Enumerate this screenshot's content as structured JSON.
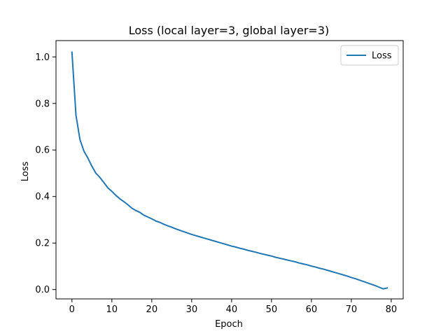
{
  "chart_data": {
    "type": "line",
    "title": "Loss (local layer=3, global layer=3)",
    "xlabel": "Epoch",
    "ylabel": "Loss",
    "xlim": [
      -4,
      83
    ],
    "ylim": [
      -0.04,
      1.07
    ],
    "xticks": [
      0,
      10,
      20,
      30,
      40,
      50,
      60,
      70,
      80
    ],
    "yticks": [
      0.0,
      0.2,
      0.4,
      0.6,
      0.8,
      1.0
    ],
    "xtick_labels": [
      "0",
      "10",
      "20",
      "30",
      "40",
      "50",
      "60",
      "70",
      "80"
    ],
    "ytick_labels": [
      "0.0",
      "0.2",
      "0.4",
      "0.6",
      "0.8",
      "1.0"
    ],
    "grid": false,
    "legend_position": "top-right",
    "series": [
      {
        "name": "Loss",
        "color": "#1f77b4",
        "x": [
          0,
          1,
          2,
          3,
          4,
          5,
          6,
          7,
          8,
          9,
          10,
          11,
          12,
          13,
          14,
          15,
          16,
          17,
          18,
          19,
          20,
          21,
          22,
          23,
          24,
          25,
          26,
          27,
          28,
          29,
          30,
          31,
          32,
          33,
          34,
          35,
          36,
          37,
          38,
          39,
          40,
          41,
          42,
          43,
          44,
          45,
          46,
          47,
          48,
          49,
          50,
          51,
          52,
          53,
          54,
          55,
          56,
          57,
          58,
          59,
          60,
          61,
          62,
          63,
          64,
          65,
          66,
          67,
          68,
          69,
          70,
          71,
          72,
          73,
          74,
          75,
          76,
          77,
          78,
          79
        ],
        "y": [
          1.02,
          0.75,
          0.645,
          0.595,
          0.565,
          0.53,
          0.5,
          0.482,
          0.46,
          0.437,
          0.422,
          0.405,
          0.39,
          0.378,
          0.365,
          0.35,
          0.34,
          0.332,
          0.32,
          0.312,
          0.304,
          0.295,
          0.289,
          0.281,
          0.274,
          0.268,
          0.261,
          0.255,
          0.249,
          0.243,
          0.237,
          0.232,
          0.227,
          0.222,
          0.217,
          0.212,
          0.207,
          0.202,
          0.197,
          0.192,
          0.187,
          0.183,
          0.178,
          0.174,
          0.169,
          0.165,
          0.161,
          0.156,
          0.152,
          0.148,
          0.144,
          0.139,
          0.135,
          0.131,
          0.127,
          0.123,
          0.119,
          0.114,
          0.11,
          0.106,
          0.101,
          0.097,
          0.092,
          0.088,
          0.083,
          0.078,
          0.073,
          0.068,
          0.063,
          0.058,
          0.052,
          0.047,
          0.041,
          0.035,
          0.029,
          0.023,
          0.017,
          0.01,
          0.003,
          0.007
        ]
      }
    ]
  }
}
